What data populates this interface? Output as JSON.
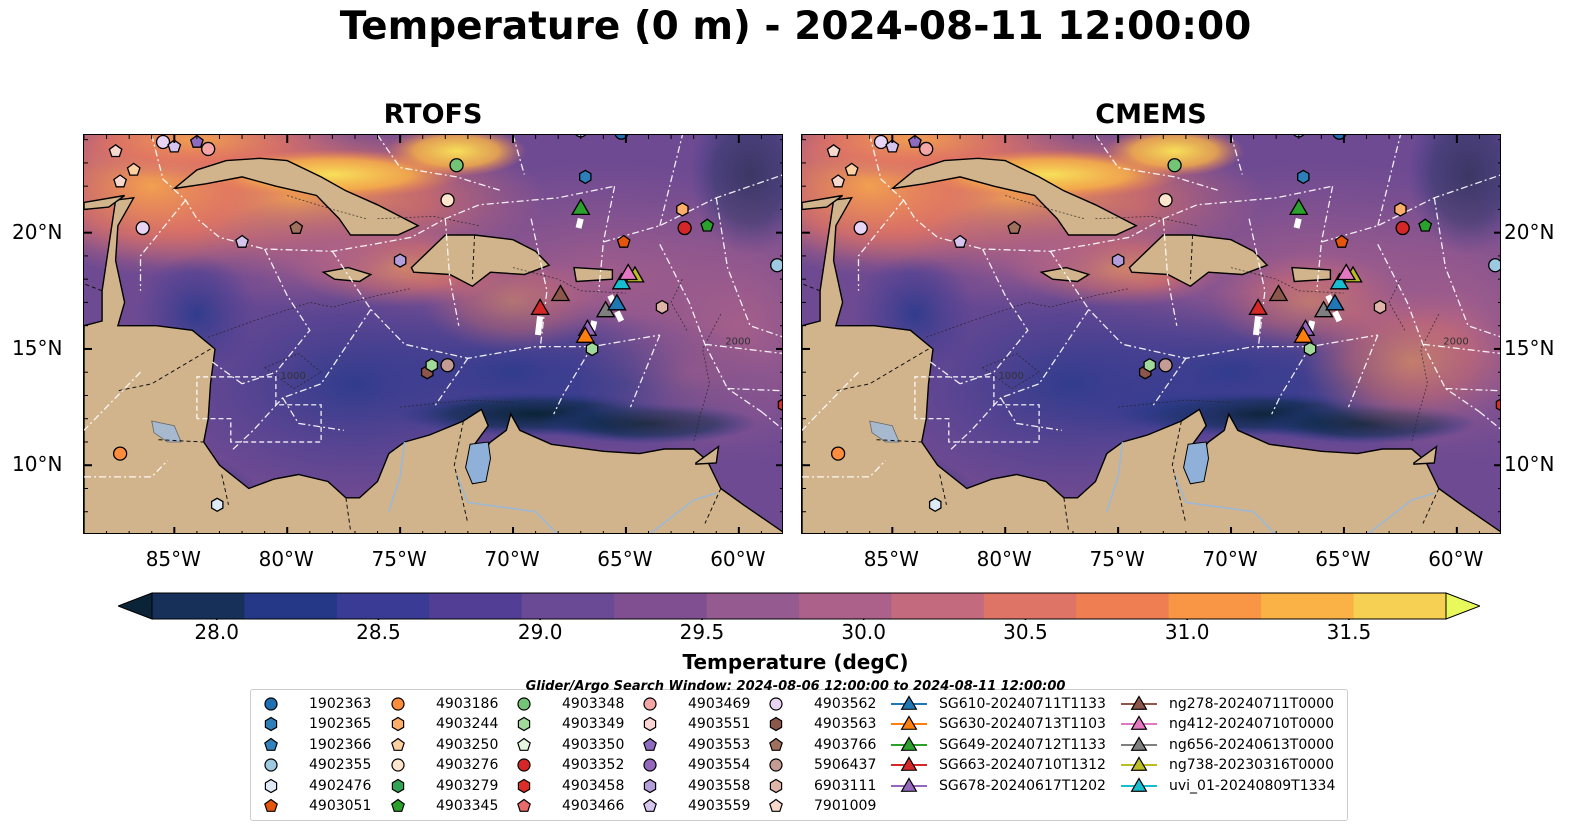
{
  "title": "Temperature (0 m) - 2024-08-11 12:00:00",
  "panels": [
    {
      "title": "RTOFS"
    },
    {
      "title": "CMEMS"
    }
  ],
  "map": {
    "lon_ticks": [
      "85°W",
      "80°W",
      "75°W",
      "70°W",
      "65°W",
      "60°W"
    ],
    "lat_ticks": [
      "20°N",
      "15°N",
      "10°N"
    ],
    "extent": {
      "lon": [
        -89,
        -58
      ],
      "lat": [
        7,
        24.2
      ]
    },
    "contour_labels": [
      "1000",
      "2000"
    ]
  },
  "colorbar": {
    "label": "Temperature (degC)",
    "ticks": [
      "28.0",
      "28.5",
      "29.0",
      "29.5",
      "30.0",
      "30.5",
      "31.0",
      "31.5"
    ],
    "range": [
      27.8,
      31.8
    ],
    "extend": "both",
    "colors": [
      "#0b2336",
      "#17305a",
      "#253787",
      "#3a3b94",
      "#523f95",
      "#6a4a95",
      "#7f4f91",
      "#955a8f",
      "#ab6189",
      "#c46a7e",
      "#dd7466",
      "#ef7f53",
      "#f99645",
      "#fab246",
      "#f6d052",
      "#e8fa5b"
    ]
  },
  "search_window": "Glider/Argo Search Window: 2024-08-06 12:00:00 to 2024-08-11 12:00:00",
  "legend": {
    "columns": [
      [
        {
          "label": "1902363",
          "marker": "circle",
          "color": "#1f6fb2"
        },
        {
          "label": "1902365",
          "marker": "hexagon",
          "color": "#2c7fb8"
        },
        {
          "label": "1902366",
          "marker": "pentagon",
          "color": "#3182bd"
        },
        {
          "label": "4902355",
          "marker": "circle",
          "color": "#9ecae1"
        },
        {
          "label": "4902476",
          "marker": "hexagon",
          "color": "#deebf7"
        },
        {
          "label": "4903051",
          "marker": "pentagon",
          "color": "#e6550d"
        }
      ],
      [
        {
          "label": "4903186",
          "marker": "circle",
          "color": "#fd8d3c"
        },
        {
          "label": "4903244",
          "marker": "hexagon",
          "color": "#fdae6b"
        },
        {
          "label": "4903250",
          "marker": "pentagon",
          "color": "#fdd0a2"
        },
        {
          "label": "4903276",
          "marker": "circle",
          "color": "#fee6ce"
        },
        {
          "label": "4903279",
          "marker": "hexagon",
          "color": "#31a354"
        },
        {
          "label": "4903345",
          "marker": "pentagon",
          "color": "#2ca02c"
        }
      ],
      [
        {
          "label": "4903348",
          "marker": "circle",
          "color": "#74c476"
        },
        {
          "label": "4903349",
          "marker": "hexagon",
          "color": "#a1d99b"
        },
        {
          "label": "4903350",
          "marker": "pentagon",
          "color": "#e5f5e0"
        },
        {
          "label": "4903352",
          "marker": "circle",
          "color": "#d62728"
        },
        {
          "label": "4903458",
          "marker": "hexagon",
          "color": "#de2d26"
        },
        {
          "label": "4903466",
          "marker": "pentagon",
          "color": "#e86a6a"
        }
      ],
      [
        {
          "label": "4903469",
          "marker": "circle",
          "color": "#f4a6a6"
        },
        {
          "label": "4903551",
          "marker": "hexagon",
          "color": "#fcd4d4"
        },
        {
          "label": "4903553",
          "marker": "pentagon",
          "color": "#8e6bbf"
        },
        {
          "label": "4903554",
          "marker": "circle",
          "color": "#9467bd"
        },
        {
          "label": "4903558",
          "marker": "hexagon",
          "color": "#b39ddb"
        },
        {
          "label": "4903559",
          "marker": "pentagon",
          "color": "#d4c4ee"
        }
      ],
      [
        {
          "label": "4903562",
          "marker": "circle",
          "color": "#e8d5f5"
        },
        {
          "label": "4903563",
          "marker": "hexagon",
          "color": "#8c564b"
        },
        {
          "label": "4903766",
          "marker": "pentagon",
          "color": "#a0705f"
        },
        {
          "label": "5906437",
          "marker": "circle",
          "color": "#c49c94"
        },
        {
          "label": "6903111",
          "marker": "hexagon",
          "color": "#e0b4a8"
        },
        {
          "label": "7901009",
          "marker": "pentagon",
          "color": "#f7d8cc"
        }
      ],
      [
        {
          "label": "SG610-20240711T1133",
          "marker": "triangle",
          "color": "#1f77b4"
        },
        {
          "label": "SG630-20240713T1103",
          "marker": "triangle",
          "color": "#ff7f0e"
        },
        {
          "label": "SG649-20240712T1133",
          "marker": "triangle",
          "color": "#2ca02c"
        },
        {
          "label": "SG663-20240710T1312",
          "marker": "triangle",
          "color": "#d62728"
        },
        {
          "label": "SG678-20240617T1202",
          "marker": "triangle",
          "color": "#9467bd"
        }
      ],
      [
        {
          "label": "ng278-20240711T0000",
          "marker": "triangle",
          "color": "#8c564b"
        },
        {
          "label": "ng412-20240710T0000",
          "marker": "triangle",
          "color": "#e377c2"
        },
        {
          "label": "ng656-20240613T0000",
          "marker": "triangle",
          "color": "#7f7f7f"
        },
        {
          "label": "ng738-20230316T0000",
          "marker": "triangle",
          "color": "#bcbd22"
        },
        {
          "label": "uvi_01-20240809T1334",
          "marker": "triangle",
          "color": "#17becf"
        }
      ]
    ]
  },
  "argo_positions": [
    {
      "id": "4903562",
      "lon": -85.5,
      "lat": 23.9,
      "marker": "circle",
      "color": "#e8d5f5"
    },
    {
      "id": "4903559",
      "lon": -85.0,
      "lat": 23.7,
      "marker": "pentagon",
      "color": "#d4c4ee"
    },
    {
      "id": "4903553",
      "lon": -84.0,
      "lat": 23.9,
      "marker": "pentagon",
      "color": "#8e6bbf"
    },
    {
      "id": "4903469",
      "lon": -83.5,
      "lat": 23.6,
      "marker": "circle",
      "color": "#f4a6a6"
    },
    {
      "id": "7901009",
      "lon": -87.6,
      "lat": 23.5,
      "marker": "pentagon",
      "color": "#f7d8cc"
    },
    {
      "id": "4903250",
      "lon": -86.8,
      "lat": 22.7,
      "marker": "pentagon",
      "color": "#fdd0a2"
    },
    {
      "id": "7901009-b",
      "lon": -87.4,
      "lat": 22.2,
      "marker": "pentagon",
      "color": "#f7d8cc"
    },
    {
      "id": "4903562-b",
      "lon": -86.4,
      "lat": 20.2,
      "marker": "circle",
      "color": "#e8d5f5"
    },
    {
      "id": "4903559-b",
      "lon": -82.0,
      "lat": 19.6,
      "marker": "pentagon",
      "color": "#d4c4ee"
    },
    {
      "id": "4903766",
      "lon": -79.6,
      "lat": 20.2,
      "marker": "pentagon",
      "color": "#a0705f"
    },
    {
      "id": "4903348",
      "lon": -72.5,
      "lat": 22.9,
      "marker": "circle",
      "color": "#74c476"
    },
    {
      "id": "4903276",
      "lon": -72.9,
      "lat": 21.4,
      "marker": "circle",
      "color": "#fee6ce"
    },
    {
      "id": "4903558",
      "lon": -75.0,
      "lat": 18.8,
      "marker": "hexagon",
      "color": "#b39ddb"
    },
    {
      "id": "1902365",
      "lon": -66.8,
      "lat": 22.4,
      "marker": "hexagon",
      "color": "#2c7fb8"
    },
    {
      "id": "4903244",
      "lon": -62.5,
      "lat": 21.0,
      "marker": "hexagon",
      "color": "#fdae6b"
    },
    {
      "id": "4903352",
      "lon": -62.4,
      "lat": 20.2,
      "marker": "circle",
      "color": "#d62728"
    },
    {
      "id": "4903345",
      "lon": -61.4,
      "lat": 20.3,
      "marker": "pentagon",
      "color": "#2ca02c"
    },
    {
      "id": "4903051",
      "lon": -65.1,
      "lat": 19.6,
      "marker": "pentagon",
      "color": "#e6550d"
    },
    {
      "id": "4902355",
      "lon": -58.3,
      "lat": 18.6,
      "marker": "circle",
      "color": "#9ecae1"
    },
    {
      "id": "6903111",
      "lon": -63.4,
      "lat": 16.8,
      "marker": "hexagon",
      "color": "#e0b4a8"
    },
    {
      "id": "4903349",
      "lon": -66.5,
      "lat": 15.0,
      "marker": "hexagon",
      "color": "#a1d99b"
    },
    {
      "id": "5906437",
      "lon": -72.9,
      "lat": 14.3,
      "marker": "circle",
      "color": "#c49c94"
    },
    {
      "id": "4903563",
      "lon": -73.8,
      "lat": 14.0,
      "marker": "hexagon",
      "color": "#8c564b"
    },
    {
      "id": "4903349-b",
      "lon": -73.6,
      "lat": 14.3,
      "marker": "hexagon",
      "color": "#a1d99b"
    },
    {
      "id": "4903186",
      "lon": -87.4,
      "lat": 10.5,
      "marker": "circle",
      "color": "#fd8d3c"
    },
    {
      "id": "4902476",
      "lon": -83.1,
      "lat": 8.3,
      "marker": "hexagon",
      "color": "#deebf7"
    },
    {
      "id": "1902363",
      "lon": -65.2,
      "lat": 24.3,
      "marker": "circle",
      "color": "#1f6fb2"
    },
    {
      "id": "4902355-b",
      "lon": -67.0,
      "lat": 24.4,
      "marker": "circle",
      "color": "#9ecae1"
    },
    {
      "id": "4903458",
      "lon": -58.0,
      "lat": 12.6,
      "marker": "hexagon",
      "color": "#de2d26"
    }
  ],
  "glider_positions": [
    {
      "id": "SG649-20240712T1133",
      "lon": -67.0,
      "lat": 21.0,
      "color": "#2ca02c"
    },
    {
      "id": "SG663-20240710T1312",
      "lon": -68.8,
      "lat": 16.7,
      "color": "#d62728"
    },
    {
      "id": "ng278-20240711T0000",
      "lon": -67.9,
      "lat": 17.3,
      "color": "#8c564b"
    },
    {
      "id": "SG678-20240617T1202",
      "lon": -66.7,
      "lat": 15.8,
      "color": "#9467bd"
    },
    {
      "id": "SG630-20240713T1103",
      "lon": -66.8,
      "lat": 15.5,
      "color": "#ff7f0e"
    },
    {
      "id": "ng656-20240613T0000",
      "lon": -65.9,
      "lat": 16.6,
      "color": "#7f7f7f"
    },
    {
      "id": "SG610-20240711T1133",
      "lon": -65.4,
      "lat": 16.9,
      "color": "#1f77b4"
    },
    {
      "id": "uvi_01-20240809T1334",
      "lon": -65.2,
      "lat": 17.8,
      "color": "#17becf"
    },
    {
      "id": "ng738-20230316T0000",
      "lon": -64.6,
      "lat": 18.1,
      "color": "#bcbd22"
    },
    {
      "id": "ng412-20240710T0000",
      "lon": -64.9,
      "lat": 18.2,
      "color": "#e377c2"
    }
  ]
}
